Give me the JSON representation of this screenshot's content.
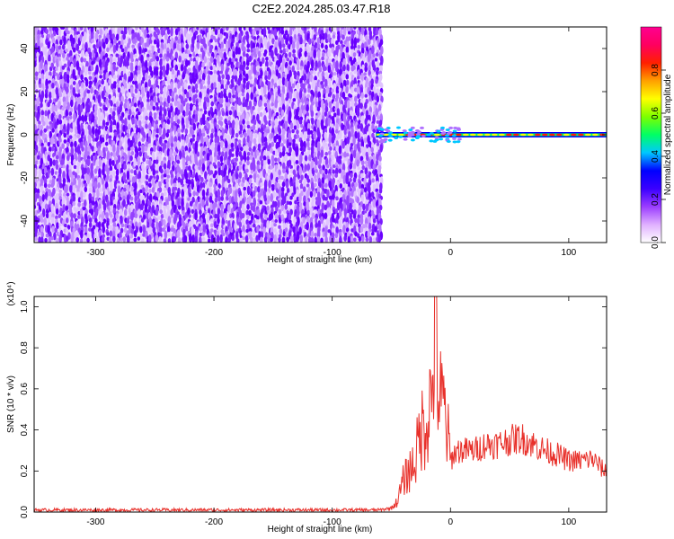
{
  "title": "C2E2.2024.285.03.47.R18",
  "chart_data": [
    {
      "type": "heatmap",
      "title": "C2E2.2024.285.03.47.R18",
      "xlabel": "Height of straight line (km)",
      "ylabel": "Frequency (Hz)",
      "xlim": [
        -352,
        132
      ],
      "ylim": [
        -50,
        50
      ],
      "x_ticks": [
        -300,
        -200,
        -100,
        0,
        100
      ],
      "y_ticks": [
        -40,
        -20,
        0,
        20,
        40
      ],
      "noise_region_x": [
        -352,
        -60
      ],
      "carrier_frequency": 0,
      "colorbar": {
        "label": "Normalized spectral amplitude",
        "range": [
          0.0,
          1.0
        ],
        "ticks": [
          "0.0",
          "0.2",
          "0.4",
          "0.6",
          "0.8"
        ],
        "colors": [
          "#ffffff",
          "#e0b0ff",
          "#9a3cff",
          "#3a00ff",
          "#0000ff",
          "#00c8ff",
          "#00ff64",
          "#7cff00",
          "#ffff00",
          "#ffa000",
          "#ff2000",
          "#ff0060",
          "#ff0090"
        ]
      }
    },
    {
      "type": "line",
      "xlabel": "Height of straight line (km)",
      "ylabel": "SNR (10 * v/v)",
      "multiplier": "(x10⁴)",
      "xlim": [
        -352,
        132
      ],
      "ylim": [
        0,
        1.05
      ],
      "x_ticks": [
        -300,
        -200,
        -100,
        0,
        100
      ],
      "y_ticks": [
        "0.0",
        "0.2",
        "0.4",
        "0.6",
        "0.8",
        "1.0"
      ],
      "series": [
        {
          "color": "#e8302a",
          "x": [
            -352,
            -300,
            -200,
            -100,
            -60,
            -50,
            -45,
            -40,
            -35,
            -30,
            -25,
            -20,
            -15,
            -13,
            -10,
            -5,
            0,
            5,
            10,
            20,
            30,
            40,
            50,
            60,
            70,
            80,
            90,
            100,
            110,
            120,
            130
          ],
          "y": [
            0.01,
            0.01,
            0.01,
            0.01,
            0.01,
            0.02,
            0.05,
            0.15,
            0.2,
            0.25,
            0.4,
            0.45,
            0.6,
            1.05,
            0.55,
            0.5,
            0.25,
            0.3,
            0.3,
            0.3,
            0.33,
            0.33,
            0.35,
            0.36,
            0.33,
            0.3,
            0.28,
            0.25,
            0.25,
            0.26,
            0.2
          ]
        }
      ]
    }
  ]
}
